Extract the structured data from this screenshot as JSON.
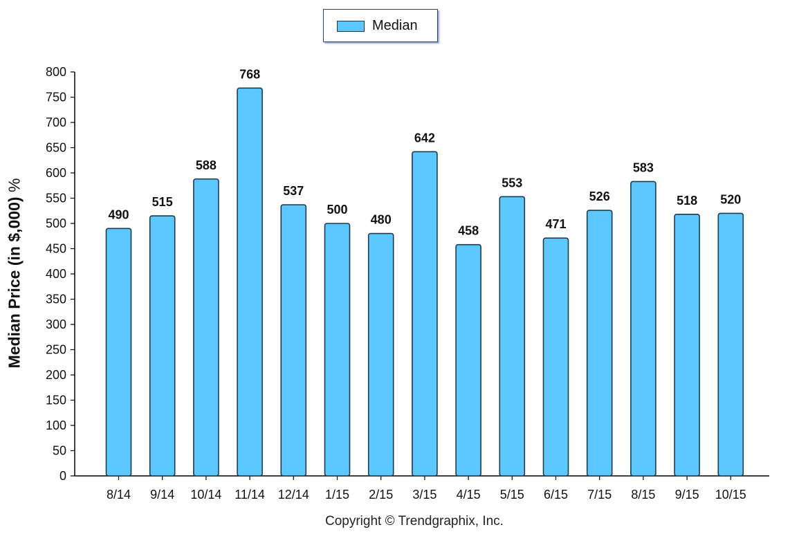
{
  "legend": {
    "label": "Median",
    "swatch_color": "#5cc8ff"
  },
  "footer": {
    "copyright": "Copyright © Trendgraphix, Inc."
  },
  "chart_data": {
    "type": "bar",
    "categories": [
      "8/14",
      "9/14",
      "10/14",
      "11/14",
      "12/14",
      "1/15",
      "2/15",
      "3/15",
      "4/15",
      "5/15",
      "6/15",
      "7/15",
      "8/15",
      "9/15",
      "10/15"
    ],
    "series": [
      {
        "name": "Median",
        "values": [
          490,
          515,
          588,
          768,
          537,
          500,
          480,
          642,
          458,
          553,
          471,
          526,
          583,
          518,
          520
        ],
        "color": "#5cc8ff"
      }
    ],
    "ylabel": "Median Price (in $,000)",
    "ylabel_suffix": "%",
    "xlabel": "",
    "ylim": [
      0,
      800
    ],
    "yticks": [
      0,
      50,
      100,
      150,
      200,
      250,
      300,
      350,
      400,
      450,
      500,
      550,
      600,
      650,
      700,
      750,
      800
    ],
    "data_labels": true,
    "grid": false,
    "legend_position": "top-center"
  }
}
